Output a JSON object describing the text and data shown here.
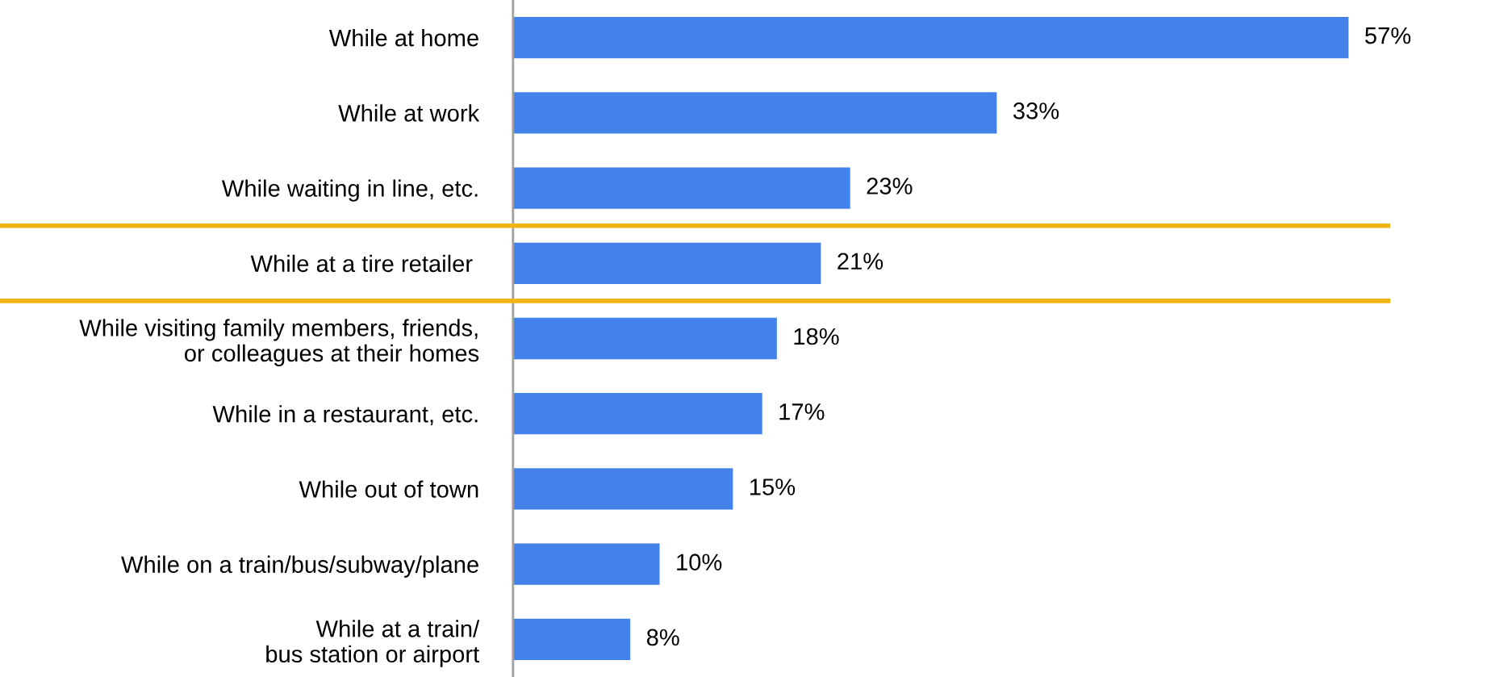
{
  "chart_data": {
    "type": "bar",
    "orientation": "horizontal",
    "categories": [
      "While at home",
      "While at work",
      "While waiting in line, etc.",
      "While at a tire retailer ",
      "While visiting family members, friends,\nor colleagues at their homes",
      "While in a restaurant, etc.",
      "While out of town",
      "While on a train/bus/subway/plane",
      "While at a train/\nbus station or airport"
    ],
    "values": [
      57,
      33,
      23,
      21,
      18,
      17,
      15,
      10,
      8
    ],
    "value_labels": [
      "57%",
      "33%",
      "23%",
      "21%",
      "18%",
      "17%",
      "15%",
      "10%",
      "8%"
    ],
    "color": "#4282ea",
    "grid": false,
    "legend": false
  }
}
